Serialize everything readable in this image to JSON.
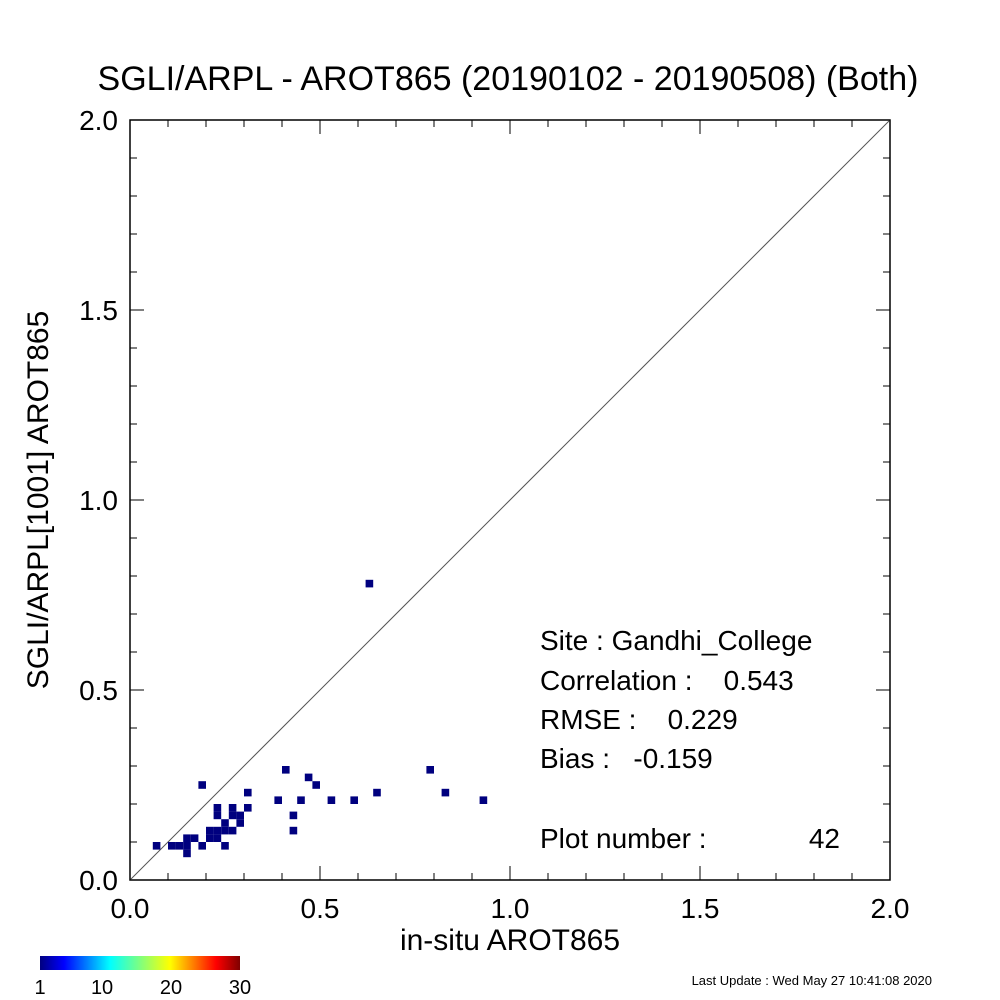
{
  "chart_data": {
    "type": "heatmap",
    "title": "SGLI/ARPL - AROT865 (20190102 - 20190508) (Both)",
    "xlabel": "in-situ AROT865",
    "ylabel": "SGLI/ARPL[1001]    AROT865",
    "xlim": [
      0.0,
      2.0
    ],
    "ylim": [
      0.0,
      2.0
    ],
    "xticks": [
      "0.0",
      "0.5",
      "1.0",
      "1.5",
      "2.0"
    ],
    "yticks": [
      "0.0",
      "0.5",
      "1.0",
      "1.5",
      "2.0"
    ],
    "one_to_one_line": true,
    "bin_size": 0.02,
    "bins": [
      {
        "x": 0.07,
        "y": 0.09
      },
      {
        "x": 0.11,
        "y": 0.09
      },
      {
        "x": 0.13,
        "y": 0.09
      },
      {
        "x": 0.15,
        "y": 0.07
      },
      {
        "x": 0.15,
        "y": 0.09
      },
      {
        "x": 0.15,
        "y": 0.11
      },
      {
        "x": 0.17,
        "y": 0.11
      },
      {
        "x": 0.19,
        "y": 0.09
      },
      {
        "x": 0.19,
        "y": 0.25
      },
      {
        "x": 0.21,
        "y": 0.11
      },
      {
        "x": 0.21,
        "y": 0.13
      },
      {
        "x": 0.23,
        "y": 0.11
      },
      {
        "x": 0.23,
        "y": 0.13
      },
      {
        "x": 0.23,
        "y": 0.17
      },
      {
        "x": 0.23,
        "y": 0.19
      },
      {
        "x": 0.25,
        "y": 0.09
      },
      {
        "x": 0.25,
        "y": 0.13
      },
      {
        "x": 0.25,
        "y": 0.15
      },
      {
        "x": 0.27,
        "y": 0.13
      },
      {
        "x": 0.27,
        "y": 0.17
      },
      {
        "x": 0.27,
        "y": 0.19
      },
      {
        "x": 0.29,
        "y": 0.15
      },
      {
        "x": 0.29,
        "y": 0.17
      },
      {
        "x": 0.31,
        "y": 0.19
      },
      {
        "x": 0.31,
        "y": 0.23
      },
      {
        "x": 0.39,
        "y": 0.21
      },
      {
        "x": 0.41,
        "y": 0.29
      },
      {
        "x": 0.43,
        "y": 0.13
      },
      {
        "x": 0.43,
        "y": 0.17
      },
      {
        "x": 0.45,
        "y": 0.21
      },
      {
        "x": 0.47,
        "y": 0.27
      },
      {
        "x": 0.49,
        "y": 0.25
      },
      {
        "x": 0.53,
        "y": 0.21
      },
      {
        "x": 0.59,
        "y": 0.21
      },
      {
        "x": 0.63,
        "y": 0.78
      },
      {
        "x": 0.65,
        "y": 0.23
      },
      {
        "x": 0.79,
        "y": 0.29
      },
      {
        "x": 0.83,
        "y": 0.23
      },
      {
        "x": 0.93,
        "y": 0.21
      }
    ],
    "bin_color": "#00007f",
    "colorbar": {
      "ticks": [
        "1",
        "10",
        "20",
        "30"
      ],
      "range": [
        1,
        30
      ],
      "colormap": "jet"
    },
    "stats": {
      "site": "Site : Gandhi_College",
      "correlation": "Correlation :    0.543",
      "rmse": "RMSE :    0.229",
      "bias": "Bias :   -0.159",
      "plot_number_label": "Plot number :",
      "plot_number_value": "42"
    }
  },
  "footer": {
    "last_update": "Last Update : Wed May 27 10:41:08 2020"
  }
}
